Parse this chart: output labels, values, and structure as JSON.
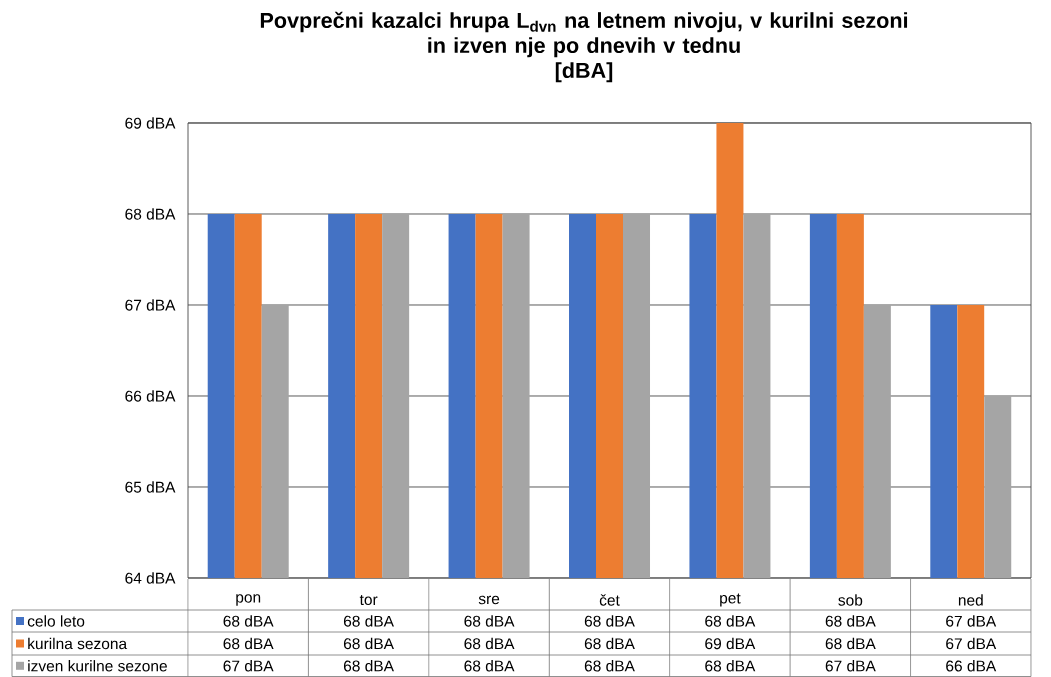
{
  "chart_data": {
    "type": "bar",
    "title": "Povprečni kazalci hrupa L$_{dvn}$ na letnem nivoju, v kurilni sezoni\nin izven nje po dnevih v tednu\n[dBA]",
    "categories": [
      "pon",
      "tor",
      "sre",
      "čet",
      "pet",
      "sob",
      "ned"
    ],
    "series": [
      {
        "name": "celo leto",
        "color": "#4472c4",
        "values": [
          68,
          68,
          68,
          68,
          68,
          68,
          67
        ],
        "value_labels": [
          "68 dBA",
          "68 dBA",
          "68 dBA",
          "68 dBA",
          "68 dBA",
          "68 dBA",
          "67 dBA"
        ]
      },
      {
        "name": "kurilna sezona",
        "color": "#ed7d31",
        "values": [
          68,
          68,
          68,
          68,
          69,
          68,
          67
        ],
        "value_labels": [
          "68 dBA",
          "68 dBA",
          "68 dBA",
          "68 dBA",
          "69 dBA",
          "68 dBA",
          "67 dBA"
        ]
      },
      {
        "name": "izven kurilne sezone",
        "color": "#a5a5a5",
        "values": [
          67,
          68,
          68,
          68,
          68,
          67,
          66
        ],
        "value_labels": [
          "67 dBA",
          "68 dBA",
          "68 dBA",
          "68 dBA",
          "68 dBA",
          "67 dBA",
          "66 dBA"
        ]
      }
    ],
    "ylim": [
      64,
      69
    ],
    "yticks": [
      {
        "value": 64,
        "label": "64 dBA"
      },
      {
        "value": 65,
        "label": "65 dBA"
      },
      {
        "value": 66,
        "label": "66 dBA"
      },
      {
        "value": 67,
        "label": "67 dBA"
      },
      {
        "value": 68,
        "label": "68 dBA"
      },
      {
        "value": 69,
        "label": "69 dBA"
      }
    ],
    "grid": "y",
    "legend": "bottom"
  }
}
